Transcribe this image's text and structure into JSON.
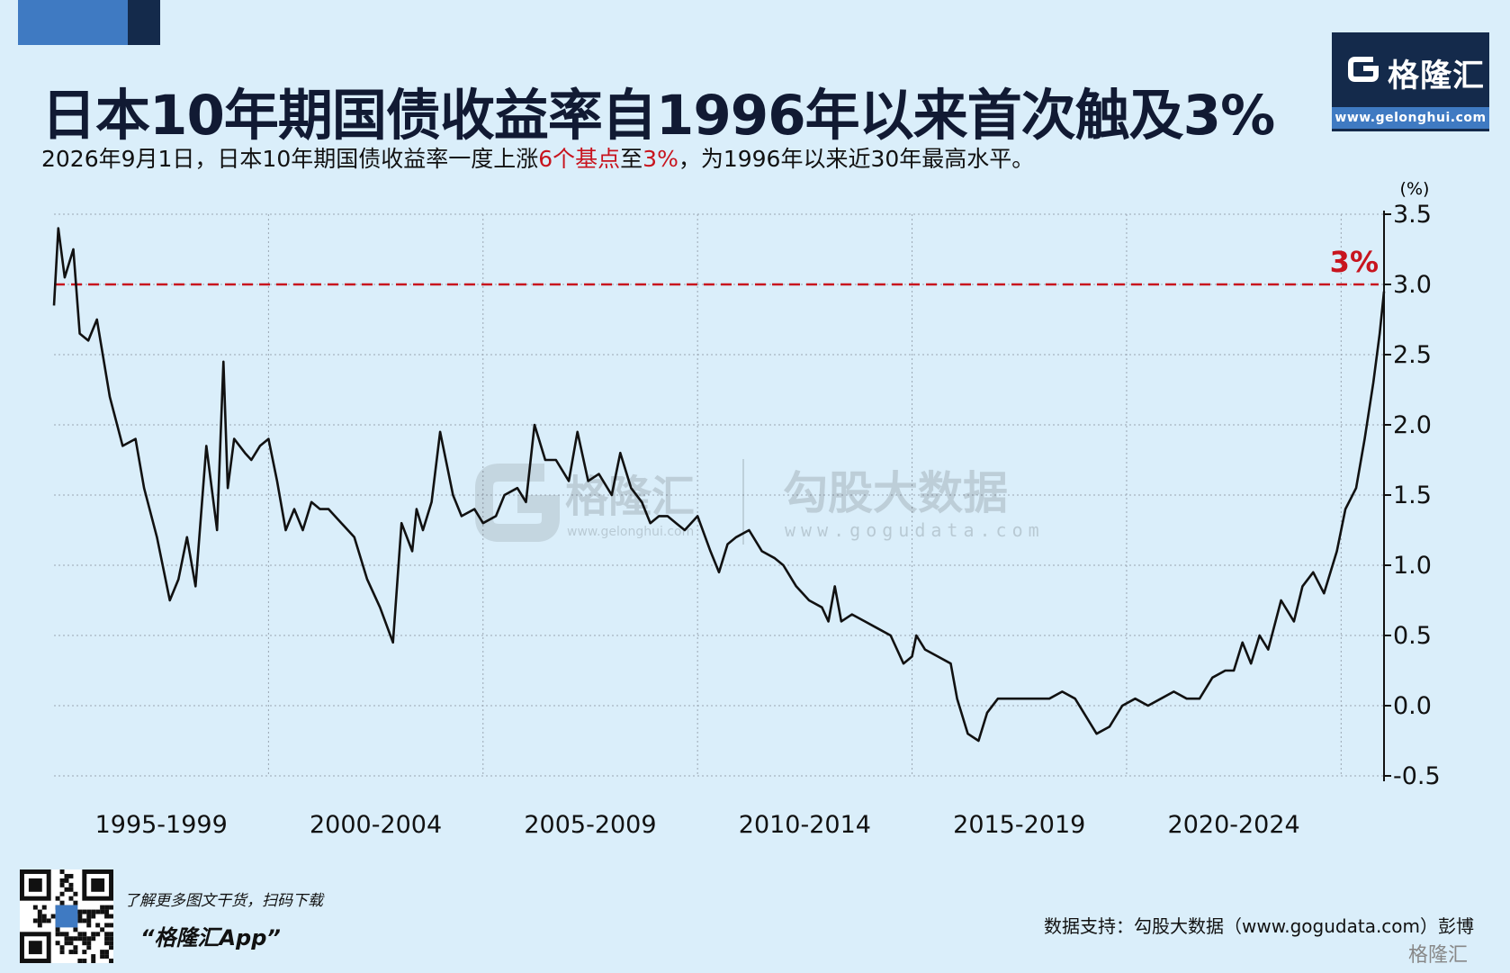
{
  "header": {
    "title": "日本10年期国债收益率自1996年以来首次触及3%",
    "subtitle_parts": [
      "2026年9月1日，日本10年期国债收益率一度上涨",
      "6个基点",
      "至",
      "3%",
      "，为1996年以来近30年最高水平。"
    ],
    "highlight_color": "#c8141e"
  },
  "logo": {
    "name": "格隆汇",
    "url": "www.gelonghui.com"
  },
  "watermark": {
    "left_brand": "格隆汇",
    "left_url": "www.gelonghui.com",
    "right_brand": "勾股大数据",
    "right_url": "www.gogudata.com"
  },
  "chart_data": {
    "type": "line",
    "title": "日本10年期国债收益率自1996年以来首次触及3%",
    "ylabel": "(%)",
    "ylim": [
      -0.5,
      3.5
    ],
    "yticks": [
      "3.5",
      "3.0",
      "2.5",
      "2.0",
      "1.5",
      "1.0",
      "0.5",
      "0.0",
      "-0.5"
    ],
    "xlim": [
      1995.0,
      2026.0
    ],
    "x_ticks": [
      "1995-1999",
      "2000-2004",
      "2005-2009",
      "2010-2014",
      "2015-2019",
      "2020-2024"
    ],
    "reference_line": {
      "value": 3.0,
      "label": "3%",
      "style": "dashed",
      "color": "#c8141e"
    },
    "line_color": "#111111",
    "grid": true,
    "series": [
      {
        "x": [
          1995.0,
          1995.1,
          1995.25,
          1995.45,
          1995.6,
          1995.8,
          1996.0,
          1996.3,
          1996.6,
          1996.9,
          1997.1,
          1997.4,
          1997.7,
          1997.9,
          1998.1,
          1998.3,
          1998.55,
          1998.8,
          1998.95,
          1999.05,
          1999.2,
          1999.45,
          1999.6,
          1999.8,
          2000.0,
          2000.2,
          2000.4,
          2000.6,
          2000.8,
          2001.0,
          2001.2,
          2001.4,
          2001.7,
          2002.0,
          2002.3,
          2002.6,
          2002.9,
          2003.1,
          2003.35,
          2003.45,
          2003.6,
          2003.8,
          2004.0,
          2004.3,
          2004.5,
          2004.8,
          2005.0,
          2005.3,
          2005.5,
          2005.8,
          2006.0,
          2006.2,
          2006.45,
          2006.7,
          2007.0,
          2007.2,
          2007.45,
          2007.7,
          2008.0,
          2008.2,
          2008.45,
          2008.7,
          2008.9,
          2009.1,
          2009.3,
          2009.5,
          2009.7,
          2010.0,
          2010.3,
          2010.5,
          2010.7,
          2010.9,
          2011.2,
          2011.5,
          2011.8,
          2012.0,
          2012.3,
          2012.6,
          2012.9,
          2013.05,
          2013.2,
          2013.35,
          2013.6,
          2013.9,
          2014.2,
          2014.5,
          2014.8,
          2015.0,
          2015.1,
          2015.3,
          2015.6,
          2015.9,
          2016.05,
          2016.3,
          2016.55,
          2016.75,
          2017.0,
          2017.3,
          2017.6,
          2017.9,
          2018.2,
          2018.5,
          2018.8,
          2019.0,
          2019.3,
          2019.6,
          2019.9,
          2020.2,
          2020.5,
          2020.8,
          2021.1,
          2021.4,
          2021.7,
          2022.0,
          2022.3,
          2022.5,
          2022.7,
          2022.9,
          2023.1,
          2023.3,
          2023.6,
          2023.9,
          2024.1,
          2024.35,
          2024.6,
          2024.9,
          2025.1,
          2025.35,
          2025.55,
          2025.75,
          2025.9,
          2026.0
        ],
        "values": [
          2.85,
          3.4,
          3.05,
          3.25,
          2.65,
          2.6,
          2.75,
          2.2,
          1.85,
          1.9,
          1.55,
          1.2,
          0.75,
          0.9,
          1.2,
          0.85,
          1.85,
          1.25,
          2.45,
          1.55,
          1.9,
          1.8,
          1.75,
          1.85,
          1.9,
          1.6,
          1.25,
          1.4,
          1.25,
          1.45,
          1.4,
          1.4,
          1.3,
          1.2,
          0.9,
          0.7,
          0.45,
          1.3,
          1.1,
          1.4,
          1.25,
          1.45,
          1.95,
          1.5,
          1.35,
          1.4,
          1.3,
          1.35,
          1.5,
          1.55,
          1.45,
          2.0,
          1.75,
          1.75,
          1.6,
          1.95,
          1.6,
          1.65,
          1.5,
          1.8,
          1.55,
          1.45,
          1.3,
          1.35,
          1.35,
          1.3,
          1.25,
          1.35,
          1.1,
          0.95,
          1.15,
          1.2,
          1.25,
          1.1,
          1.05,
          1.0,
          0.85,
          0.75,
          0.7,
          0.6,
          0.85,
          0.6,
          0.65,
          0.6,
          0.55,
          0.5,
          0.3,
          0.35,
          0.5,
          0.4,
          0.35,
          0.3,
          0.05,
          -0.2,
          -0.25,
          -0.05,
          0.05,
          0.05,
          0.05,
          0.05,
          0.05,
          0.1,
          0.05,
          -0.05,
          -0.2,
          -0.15,
          0.0,
          0.05,
          0.0,
          0.05,
          0.1,
          0.05,
          0.05,
          0.2,
          0.25,
          0.25,
          0.45,
          0.3,
          0.5,
          0.4,
          0.75,
          0.6,
          0.85,
          0.95,
          0.8,
          1.1,
          1.4,
          1.55,
          1.9,
          2.3,
          2.65,
          2.95
        ]
      }
    ]
  },
  "footer": {
    "promo_line1": "了解更多图文干货，扫码下载",
    "promo_line2": "“格隆汇App”",
    "source": "数据支持：勾股大数据（www.gogudata.com）彭博",
    "corner_brand": "格隆汇"
  }
}
